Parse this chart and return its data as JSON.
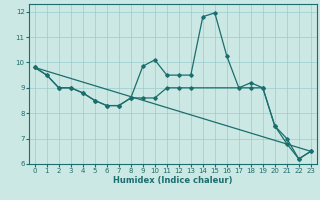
{
  "xlabel": "Humidex (Indice chaleur)",
  "background_color": "#cce8e4",
  "grid_color": "#99cccc",
  "line_color": "#1a6e6e",
  "xlim": [
    -0.5,
    23.5
  ],
  "ylim": [
    6,
    12.3
  ],
  "yticks": [
    6,
    7,
    8,
    9,
    10,
    11,
    12
  ],
  "xticks": [
    0,
    1,
    2,
    3,
    4,
    5,
    6,
    7,
    8,
    9,
    10,
    11,
    12,
    13,
    14,
    15,
    16,
    17,
    18,
    19,
    20,
    21,
    22,
    23
  ],
  "series1_x": [
    0,
    1,
    2,
    3,
    4,
    5,
    6,
    7,
    8,
    9,
    10,
    11,
    12,
    13,
    14,
    15,
    16,
    17,
    18,
    19,
    20,
    21,
    22,
    23
  ],
  "series1_y": [
    9.8,
    9.5,
    9.0,
    9.0,
    8.8,
    8.5,
    8.3,
    8.3,
    8.6,
    9.85,
    10.1,
    9.5,
    9.5,
    9.5,
    11.8,
    11.95,
    10.25,
    9.0,
    9.2,
    9.0,
    7.5,
    6.8,
    6.2,
    6.5
  ],
  "series2_x": [
    0,
    1,
    2,
    3,
    4,
    5,
    6,
    7,
    8,
    9,
    10,
    11,
    12,
    13,
    18,
    19,
    20,
    21,
    22,
    23
  ],
  "series2_y": [
    9.8,
    9.5,
    9.0,
    9.0,
    8.8,
    8.5,
    8.3,
    8.3,
    8.6,
    8.6,
    8.6,
    9.0,
    9.0,
    9.0,
    9.0,
    9.0,
    7.5,
    7.0,
    6.2,
    6.5
  ],
  "series3_x": [
    0,
    23
  ],
  "series3_y": [
    9.8,
    6.5
  ]
}
